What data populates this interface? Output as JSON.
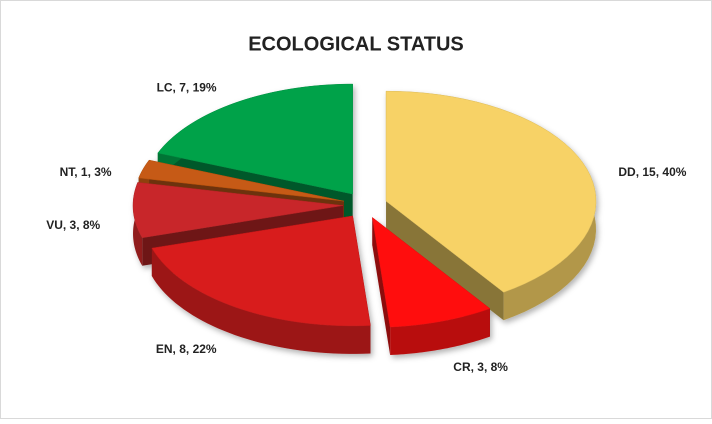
{
  "chart_data": {
    "type": "pie",
    "title": "ECOLOGICAL STATUS",
    "categories": [
      "DD",
      "CR",
      "EN",
      "VU",
      "NT",
      "LC"
    ],
    "values": [
      15,
      3,
      8,
      3,
      1,
      7
    ],
    "value_labels": [
      "DD, 15, 40%",
      "CR, 3, 8%",
      "EN, 8, 22%",
      "VU, 3, 8%",
      "NT, 1, 3%",
      "LC, 7, 19%"
    ],
    "colors": [
      "#f7d266",
      "#ff1010",
      "#d81c1c",
      "#c8282a",
      "#c65a12",
      "#00a24a"
    ]
  }
}
